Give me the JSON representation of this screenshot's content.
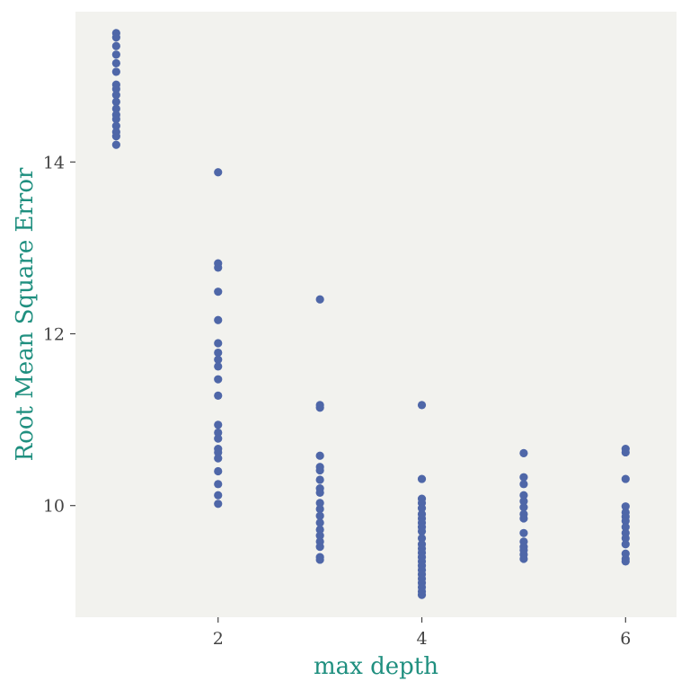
{
  "colors": {
    "panel_background": "#f2f2ee",
    "point": "#4f67a8",
    "axis_title": "#1f8f7f",
    "tick": "#444444"
  },
  "chart_data": {
    "type": "scatter",
    "title": "",
    "xlabel": "max depth",
    "ylabel": "Root Mean Square Error",
    "xlim": [
      0.6,
      6.5
    ],
    "ylim": [
      8.7,
      15.75
    ],
    "x_ticks": [
      2,
      4,
      6
    ],
    "x_tick_labels": [
      "2",
      "4",
      "6"
    ],
    "y_ticks": [
      10,
      12,
      14
    ],
    "y_tick_labels": [
      "10",
      "12",
      "14"
    ],
    "grid": false,
    "legend": "none",
    "points": [
      {
        "x": 1,
        "y": 15.5
      },
      {
        "x": 1,
        "y": 15.45
      },
      {
        "x": 1,
        "y": 15.35
      },
      {
        "x": 1,
        "y": 15.25
      },
      {
        "x": 1,
        "y": 15.15
      },
      {
        "x": 1,
        "y": 15.05
      },
      {
        "x": 1,
        "y": 14.9
      },
      {
        "x": 1,
        "y": 14.85
      },
      {
        "x": 1,
        "y": 14.78
      },
      {
        "x": 1,
        "y": 14.7
      },
      {
        "x": 1,
        "y": 14.62
      },
      {
        "x": 1,
        "y": 14.55
      },
      {
        "x": 1,
        "y": 14.5
      },
      {
        "x": 1,
        "y": 14.42
      },
      {
        "x": 1,
        "y": 14.35
      },
      {
        "x": 1,
        "y": 14.3
      },
      {
        "x": 1,
        "y": 14.2
      },
      {
        "x": 2,
        "y": 13.88
      },
      {
        "x": 2,
        "y": 12.82
      },
      {
        "x": 2,
        "y": 12.77
      },
      {
        "x": 2,
        "y": 12.49
      },
      {
        "x": 2,
        "y": 12.16
      },
      {
        "x": 2,
        "y": 11.89
      },
      {
        "x": 2,
        "y": 11.78
      },
      {
        "x": 2,
        "y": 11.7
      },
      {
        "x": 2,
        "y": 11.62
      },
      {
        "x": 2,
        "y": 11.47
      },
      {
        "x": 2,
        "y": 11.28
      },
      {
        "x": 2,
        "y": 10.94
      },
      {
        "x": 2,
        "y": 10.85
      },
      {
        "x": 2,
        "y": 10.78
      },
      {
        "x": 2,
        "y": 10.66
      },
      {
        "x": 2,
        "y": 10.62
      },
      {
        "x": 2,
        "y": 10.55
      },
      {
        "x": 2,
        "y": 10.4
      },
      {
        "x": 2,
        "y": 10.25
      },
      {
        "x": 2,
        "y": 10.12
      },
      {
        "x": 2,
        "y": 10.02
      },
      {
        "x": 3,
        "y": 12.4
      },
      {
        "x": 3,
        "y": 11.17
      },
      {
        "x": 3,
        "y": 11.14
      },
      {
        "x": 3,
        "y": 10.58
      },
      {
        "x": 3,
        "y": 10.45
      },
      {
        "x": 3,
        "y": 10.41
      },
      {
        "x": 3,
        "y": 10.3
      },
      {
        "x": 3,
        "y": 10.2
      },
      {
        "x": 3,
        "y": 10.15
      },
      {
        "x": 3,
        "y": 10.03
      },
      {
        "x": 3,
        "y": 9.96
      },
      {
        "x": 3,
        "y": 9.88
      },
      {
        "x": 3,
        "y": 9.8
      },
      {
        "x": 3,
        "y": 9.72
      },
      {
        "x": 3,
        "y": 9.65
      },
      {
        "x": 3,
        "y": 9.58
      },
      {
        "x": 3,
        "y": 9.52
      },
      {
        "x": 3,
        "y": 9.4
      },
      {
        "x": 3,
        "y": 9.37
      },
      {
        "x": 4,
        "y": 11.17
      },
      {
        "x": 4,
        "y": 10.31
      },
      {
        "x": 4,
        "y": 10.08
      },
      {
        "x": 4,
        "y": 10.03
      },
      {
        "x": 4,
        "y": 9.97
      },
      {
        "x": 4,
        "y": 9.9
      },
      {
        "x": 4,
        "y": 9.85
      },
      {
        "x": 4,
        "y": 9.8
      },
      {
        "x": 4,
        "y": 9.75
      },
      {
        "x": 4,
        "y": 9.7
      },
      {
        "x": 4,
        "y": 9.62
      },
      {
        "x": 4,
        "y": 9.55
      },
      {
        "x": 4,
        "y": 9.5
      },
      {
        "x": 4,
        "y": 9.45
      },
      {
        "x": 4,
        "y": 9.4
      },
      {
        "x": 4,
        "y": 9.35
      },
      {
        "x": 4,
        "y": 9.3
      },
      {
        "x": 4,
        "y": 9.25
      },
      {
        "x": 4,
        "y": 9.2
      },
      {
        "x": 4,
        "y": 9.15
      },
      {
        "x": 4,
        "y": 9.1
      },
      {
        "x": 4,
        "y": 9.05
      },
      {
        "x": 4,
        "y": 9.0
      },
      {
        "x": 4,
        "y": 8.96
      },
      {
        "x": 5,
        "y": 10.61
      },
      {
        "x": 5,
        "y": 10.33
      },
      {
        "x": 5,
        "y": 10.25
      },
      {
        "x": 5,
        "y": 10.12
      },
      {
        "x": 5,
        "y": 10.05
      },
      {
        "x": 5,
        "y": 9.98
      },
      {
        "x": 5,
        "y": 9.9
      },
      {
        "x": 5,
        "y": 9.85
      },
      {
        "x": 5,
        "y": 9.68
      },
      {
        "x": 5,
        "y": 9.58
      },
      {
        "x": 5,
        "y": 9.52
      },
      {
        "x": 5,
        "y": 9.48
      },
      {
        "x": 5,
        "y": 9.43
      },
      {
        "x": 5,
        "y": 9.38
      },
      {
        "x": 6,
        "y": 10.66
      },
      {
        "x": 6,
        "y": 10.62
      },
      {
        "x": 6,
        "y": 10.31
      },
      {
        "x": 6,
        "y": 9.99
      },
      {
        "x": 6,
        "y": 9.92
      },
      {
        "x": 6,
        "y": 9.87
      },
      {
        "x": 6,
        "y": 9.82
      },
      {
        "x": 6,
        "y": 9.75
      },
      {
        "x": 6,
        "y": 9.68
      },
      {
        "x": 6,
        "y": 9.62
      },
      {
        "x": 6,
        "y": 9.55
      },
      {
        "x": 6,
        "y": 9.44
      },
      {
        "x": 6,
        "y": 9.38
      },
      {
        "x": 6,
        "y": 9.35
      }
    ]
  }
}
